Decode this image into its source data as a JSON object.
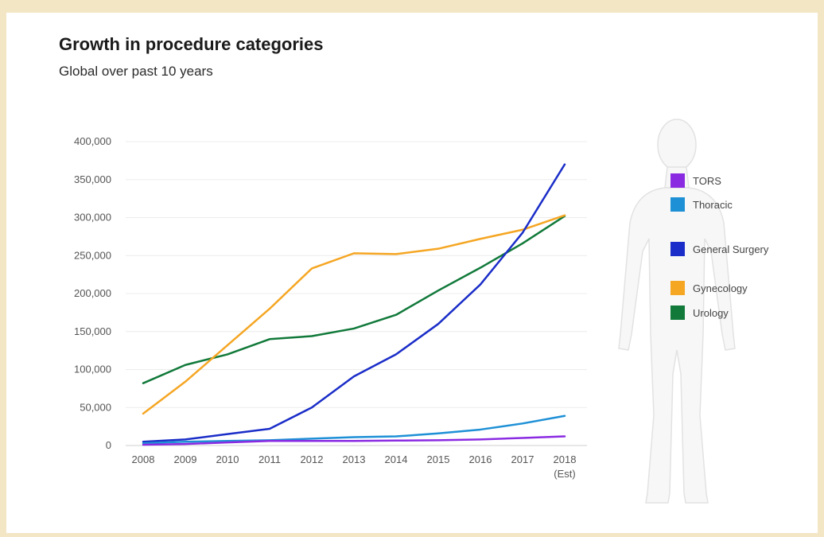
{
  "chart_data": {
    "type": "line",
    "title": "Growth in procedure categories",
    "subtitle": "Global over past 10 years",
    "xlabel": "",
    "ylabel": "",
    "categories": [
      "2008",
      "2009",
      "2010",
      "2011",
      "2012",
      "2013",
      "2014",
      "2015",
      "2016",
      "2017",
      "2018"
    ],
    "category_sublabels": [
      "",
      "",
      "",
      "",
      "",
      "",
      "",
      "",
      "",
      "",
      "(Est)"
    ],
    "ylim": [
      0,
      400000
    ],
    "yticks": [
      0,
      50000,
      100000,
      150000,
      200000,
      250000,
      300000,
      350000,
      400000
    ],
    "ytick_labels": [
      "0",
      "50,000",
      "100,000",
      "150,000",
      "200,000",
      "250,000",
      "300,000",
      "350,000",
      "400,000"
    ],
    "grid": true,
    "legend_position": "right",
    "series": [
      {
        "name": "TORS",
        "color": "#8a2be2",
        "values": [
          1000,
          2000,
          4000,
          6000,
          6000,
          6000,
          6500,
          7000,
          8000,
          10000,
          12000
        ]
      },
      {
        "name": "Thoracic",
        "color": "#1e90d6",
        "values": [
          3000,
          5000,
          6000,
          7000,
          9000,
          11000,
          12000,
          16000,
          21000,
          29000,
          39000
        ]
      },
      {
        "name": "General Surgery",
        "color": "#1a2dc8",
        "values": [
          5000,
          8000,
          15000,
          22000,
          50000,
          91000,
          120000,
          160000,
          212000,
          280000,
          370000
        ]
      },
      {
        "name": "Gynecology",
        "color": "#f5a623",
        "values": [
          42000,
          84000,
          132000,
          180000,
          233000,
          253000,
          252000,
          259000,
          272000,
          284000,
          303000
        ]
      },
      {
        "name": "Urology",
        "color": "#11793a",
        "values": [
          82000,
          106000,
          120000,
          140000,
          144000,
          154000,
          172000,
          204000,
          234000,
          266000,
          302000
        ]
      }
    ]
  }
}
